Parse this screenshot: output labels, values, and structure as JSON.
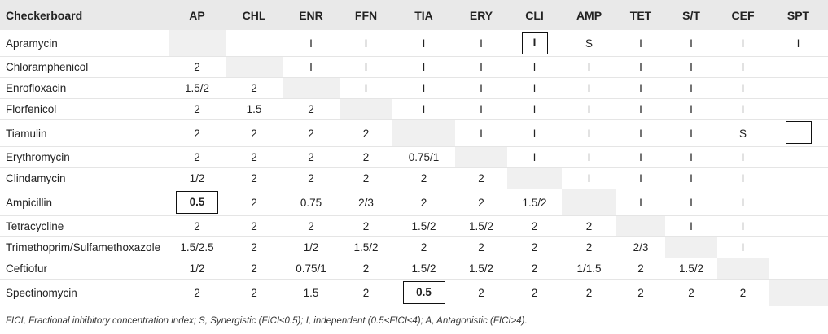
{
  "header": [
    "Checkerboard",
    "AP",
    "CHL",
    "ENR",
    "FFN",
    "TIA",
    "ERY",
    "CLI",
    "AMP",
    "TET",
    "S/T",
    "CEF",
    "SPT"
  ],
  "rows": [
    {
      "label": "Apramycin",
      "cells": [
        "",
        "I",
        "I",
        "I",
        "I",
        "I",
        "S",
        "I",
        "I",
        "I",
        "I"
      ]
    },
    {
      "label": "Chloramphenicol",
      "cells": [
        "2",
        "I",
        "I",
        "I",
        "I",
        "I",
        "I",
        "I",
        "I",
        "I"
      ]
    },
    {
      "label": "Enrofloxacin",
      "cells": [
        "1.5/2",
        "2",
        "I",
        "I",
        "I",
        "I",
        "I",
        "I",
        "I",
        "I"
      ]
    },
    {
      "label": "Florfenicol",
      "cells": [
        "2",
        "1.5",
        "2",
        "I",
        "I",
        "I",
        "I",
        "I",
        "I",
        "I"
      ]
    },
    {
      "label": "Tiamulin",
      "cells": [
        "2",
        "2",
        "2",
        "2",
        "I",
        "I",
        "I",
        "I",
        "I",
        "S"
      ]
    },
    {
      "label": "Erythromycin",
      "cells": [
        "2",
        "2",
        "2",
        "2",
        "0.75/1",
        "I",
        "I",
        "I",
        "I",
        "I"
      ]
    },
    {
      "label": "Clindamycin",
      "cells": [
        "1/2",
        "2",
        "2",
        "2",
        "2",
        "2",
        "I",
        "I",
        "I",
        "I"
      ]
    },
    {
      "label": "Ampicillin",
      "cells": [
        "0.5",
        "2",
        "0.75",
        "2/3",
        "2",
        "2",
        "1.5/2",
        "I",
        "I",
        "I"
      ]
    },
    {
      "label": "Tetracycline",
      "cells": [
        "2",
        "2",
        "2",
        "2",
        "1.5/2",
        "1.5/2",
        "2",
        "2",
        "I",
        "I"
      ]
    },
    {
      "label": "Trimethoprim/Sulfamethoxazole",
      "cells": [
        "1.5/2.5",
        "2",
        "1/2",
        "1.5/2",
        "2",
        "2",
        "2",
        "2",
        "2/3",
        "I"
      ]
    },
    {
      "label": "Ceftiofur",
      "cells": [
        "1/2",
        "2",
        "0.75/1",
        "2",
        "1.5/2",
        "1.5/2",
        "2",
        "1/1.5",
        "2",
        "1.5/2"
      ]
    },
    {
      "label": "Spectinomycin",
      "cells": [
        "2",
        "2",
        "1.5",
        "2",
        "0.5",
        "2",
        "2",
        "2",
        "2",
        "2",
        "2"
      ]
    }
  ],
  "footnote": "FICI, Fractional inhibitory concentration index; S, Synergistic (FICI≤0.5); I, independent (0.5<FICI≤4); A, Antagonistic (FICI>4)."
}
